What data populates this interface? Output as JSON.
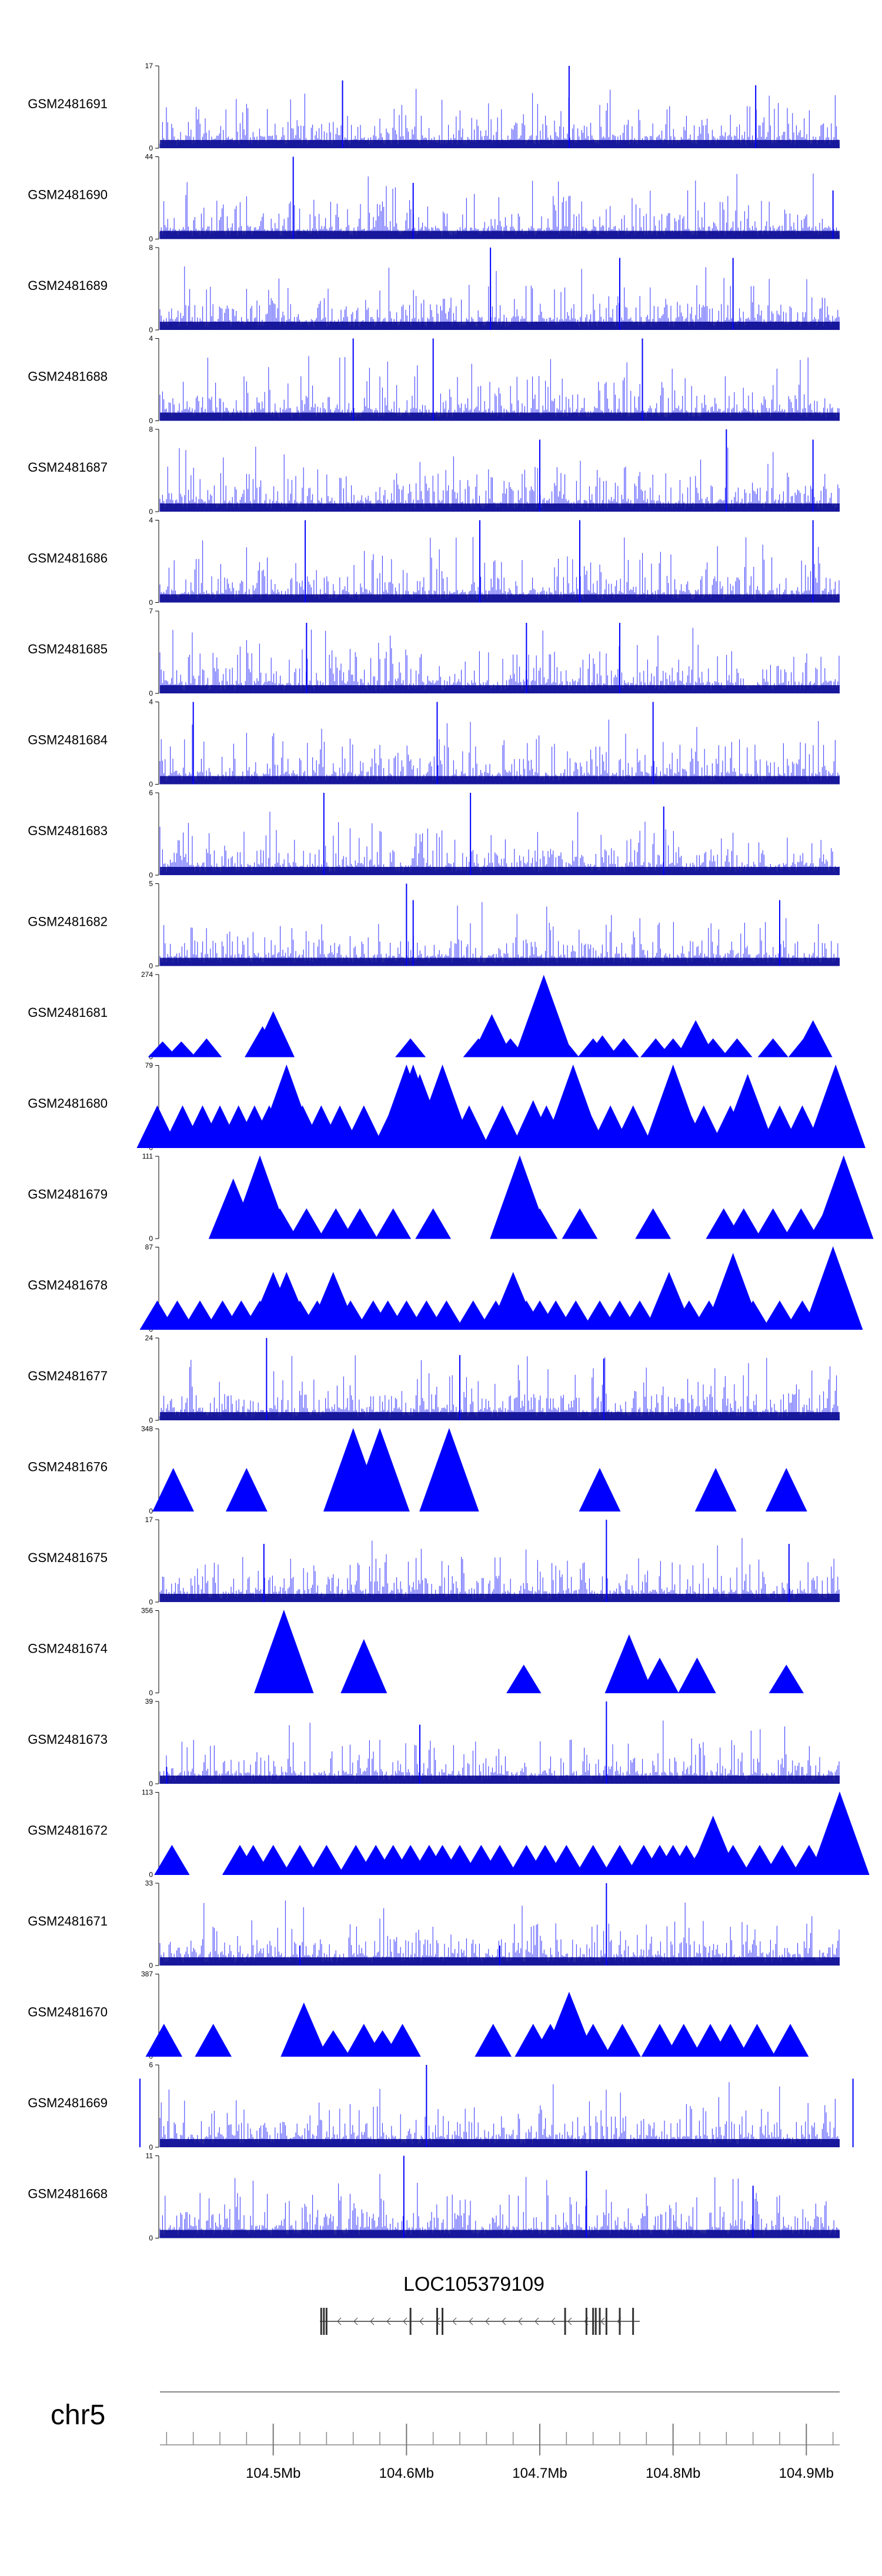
{
  "chart_data": {
    "type": "area",
    "color": "#0000ff",
    "edge_color": "#00008b",
    "tracks": [
      {
        "name": "GSM2481691",
        "ymax": "17",
        "ymin": "0",
        "style": "dense",
        "peaks": [
          [
            104.552,
            14
          ],
          [
            104.722,
            17
          ],
          [
            104.862,
            13
          ]
        ]
      },
      {
        "name": "GSM2481690",
        "ymax": "44",
        "ymin": "0",
        "style": "dense",
        "peaks": [
          [
            104.515,
            44
          ],
          [
            104.605,
            30
          ],
          [
            104.92,
            26
          ]
        ]
      },
      {
        "name": "GSM2481689",
        "ymax": "8",
        "ymin": "0",
        "style": "dense",
        "peaks": [
          [
            104.663,
            8
          ],
          [
            104.845,
            7
          ],
          [
            104.76,
            7
          ]
        ]
      },
      {
        "name": "GSM2481688",
        "ymax": "4",
        "ymin": "0",
        "style": "dense",
        "peaks": [
          [
            104.56,
            4
          ],
          [
            104.62,
            4
          ],
          [
            104.777,
            4
          ]
        ]
      },
      {
        "name": "GSM2481687",
        "ymax": "8",
        "ymin": "0",
        "style": "dense",
        "peaks": [
          [
            104.84,
            8
          ],
          [
            104.7,
            7
          ],
          [
            104.905,
            7
          ]
        ]
      },
      {
        "name": "GSM2481686",
        "ymax": "4",
        "ymin": "0",
        "style": "dense",
        "peaks": [
          [
            104.524,
            4
          ],
          [
            104.655,
            4
          ],
          [
            104.73,
            4
          ],
          [
            104.905,
            4
          ]
        ]
      },
      {
        "name": "GSM2481685",
        "ymax": "7",
        "ymin": "0",
        "style": "dense",
        "peaks": [
          [
            104.525,
            6
          ],
          [
            104.69,
            6
          ],
          [
            104.76,
            6
          ]
        ]
      },
      {
        "name": "GSM2481684",
        "ymax": "4",
        "ymin": "0",
        "style": "dense",
        "peaks": [
          [
            104.44,
            4
          ],
          [
            104.623,
            4
          ],
          [
            104.785,
            4
          ]
        ]
      },
      {
        "name": "GSM2481683",
        "ymax": "6",
        "ymin": "0",
        "style": "dense",
        "peaks": [
          [
            104.538,
            6
          ],
          [
            104.648,
            6
          ],
          [
            104.793,
            5
          ]
        ]
      },
      {
        "name": "GSM2481682",
        "ymax": "5",
        "ymin": "0",
        "style": "dense",
        "peaks": [
          [
            104.6,
            5
          ],
          [
            104.605,
            4
          ],
          [
            104.88,
            4
          ]
        ]
      },
      {
        "name": "GSM2481681",
        "ymax": "274",
        "ymin": "0",
        "style": "peaks",
        "peaks": [
          [
            104.417,
            50
          ],
          [
            104.431,
            50
          ],
          [
            104.45,
            60
          ],
          [
            104.49,
            50
          ],
          [
            104.492,
            100
          ],
          [
            104.5,
            150
          ],
          [
            104.603,
            60
          ],
          [
            104.654,
            60
          ],
          [
            104.664,
            140
          ],
          [
            104.678,
            60
          ],
          [
            104.695,
            70
          ],
          [
            104.703,
            270
          ],
          [
            104.718,
            60
          ],
          [
            104.74,
            60
          ],
          [
            104.747,
            70
          ],
          [
            104.763,
            60
          ],
          [
            104.787,
            60
          ],
          [
            104.8,
            60
          ],
          [
            104.81,
            40
          ],
          [
            104.817,
            120
          ],
          [
            104.83,
            60
          ],
          [
            104.848,
            60
          ],
          [
            104.875,
            60
          ],
          [
            104.898,
            60
          ],
          [
            104.905,
            120
          ]
        ]
      },
      {
        "name": "GSM2481680",
        "ymax": "79",
        "ymin": "0",
        "style": "peaks",
        "peaks": [
          [
            104.413,
            40
          ],
          [
            104.432,
            40
          ],
          [
            104.447,
            40
          ],
          [
            104.46,
            40
          ],
          [
            104.474,
            40
          ],
          [
            104.486,
            40
          ],
          [
            104.497,
            40
          ],
          [
            104.505,
            40
          ],
          [
            104.51,
            79
          ],
          [
            104.522,
            40
          ],
          [
            104.536,
            40
          ],
          [
            104.55,
            40
          ],
          [
            104.568,
            40
          ],
          [
            104.59,
            40
          ],
          [
            104.6,
            79
          ],
          [
            104.605,
            79
          ],
          [
            104.61,
            70
          ],
          [
            104.616,
            40
          ],
          [
            104.627,
            79
          ],
          [
            104.647,
            40
          ],
          [
            104.672,
            40
          ],
          [
            104.695,
            45
          ],
          [
            104.705,
            40
          ],
          [
            104.717,
            40
          ],
          [
            104.725,
            79
          ],
          [
            104.735,
            40
          ],
          [
            104.753,
            40
          ],
          [
            104.77,
            40
          ],
          [
            104.792,
            40
          ],
          [
            104.8,
            79
          ],
          [
            104.81,
            40
          ],
          [
            104.823,
            40
          ],
          [
            104.843,
            40
          ],
          [
            104.856,
            70
          ],
          [
            104.862,
            40
          ],
          [
            104.88,
            40
          ],
          [
            104.897,
            40
          ],
          [
            104.915,
            40
          ],
          [
            104.922,
            79
          ]
        ]
      },
      {
        "name": "GSM2481679",
        "ymax": "111",
        "ymin": "0",
        "style": "peaks",
        "peaks": [
          [
            104.465,
            40
          ],
          [
            104.47,
            80
          ],
          [
            104.49,
            111
          ],
          [
            104.505,
            40
          ],
          [
            104.525,
            40
          ],
          [
            104.547,
            40
          ],
          [
            104.565,
            40
          ],
          [
            104.59,
            40
          ],
          [
            104.62,
            40
          ],
          [
            104.685,
            111
          ],
          [
            104.692,
            40
          ],
          [
            104.7,
            40
          ],
          [
            104.73,
            40
          ],
          [
            104.785,
            40
          ],
          [
            104.838,
            40
          ],
          [
            104.853,
            40
          ],
          [
            104.875,
            40
          ],
          [
            104.896,
            40
          ],
          [
            104.915,
            40
          ],
          [
            104.928,
            111
          ]
        ]
      },
      {
        "name": "GSM2481678",
        "ymax": "87",
        "ymin": "0",
        "style": "peaks",
        "peaks": [
          [
            104.413,
            30
          ],
          [
            104.428,
            30
          ],
          [
            104.445,
            30
          ],
          [
            104.462,
            30
          ],
          [
            104.476,
            30
          ],
          [
            104.49,
            30
          ],
          [
            104.5,
            60
          ],
          [
            104.51,
            60
          ],
          [
            104.52,
            30
          ],
          [
            104.533,
            30
          ],
          [
            104.545,
            60
          ],
          [
            104.558,
            30
          ],
          [
            104.575,
            30
          ],
          [
            104.586,
            30
          ],
          [
            104.6,
            30
          ],
          [
            104.615,
            30
          ],
          [
            104.63,
            30
          ],
          [
            104.65,
            30
          ],
          [
            104.667,
            30
          ],
          [
            104.68,
            60
          ],
          [
            104.69,
            30
          ],
          [
            104.7,
            30
          ],
          [
            104.712,
            30
          ],
          [
            104.727,
            30
          ],
          [
            104.745,
            30
          ],
          [
            104.76,
            30
          ],
          [
            104.775,
            30
          ],
          [
            104.797,
            60
          ],
          [
            104.812,
            30
          ],
          [
            104.827,
            30
          ],
          [
            104.845,
            80
          ],
          [
            104.86,
            30
          ],
          [
            104.88,
            30
          ],
          [
            104.897,
            30
          ],
          [
            104.92,
            87
          ]
        ]
      },
      {
        "name": "GSM2481677",
        "ymax": "24",
        "ymin": "0",
        "style": "dense",
        "peaks": [
          [
            104.495,
            24
          ],
          [
            104.64,
            19
          ],
          [
            104.748,
            18
          ]
        ]
      },
      {
        "name": "GSM2481676",
        "ymax": "348",
        "ymin": "0",
        "style": "peaks",
        "peaks": [
          [
            104.425,
            180
          ],
          [
            104.48,
            180
          ],
          [
            104.56,
            348
          ],
          [
            104.58,
            348
          ],
          [
            104.632,
            348
          ],
          [
            104.745,
            180
          ],
          [
            104.832,
            180
          ],
          [
            104.885,
            180
          ]
        ]
      },
      {
        "name": "GSM2481675",
        "ymax": "17",
        "ymin": "0",
        "style": "dense",
        "peaks": [
          [
            104.75,
            17
          ],
          [
            104.493,
            12
          ],
          [
            104.887,
            12
          ]
        ]
      },
      {
        "name": "GSM2481674",
        "ymax": "356",
        "ymin": "0",
        "style": "peaks",
        "peaks": [
          [
            104.508,
            356
          ],
          [
            104.568,
            230
          ],
          [
            104.688,
            120
          ],
          [
            104.767,
            250
          ],
          [
            104.79,
            150
          ],
          [
            104.818,
            150
          ],
          [
            104.885,
            120
          ]
        ]
      },
      {
        "name": "GSM2481673",
        "ymax": "39",
        "ymin": "0",
        "style": "dense",
        "peaks": [
          [
            104.75,
            39
          ],
          [
            104.61,
            28
          ],
          [
            104.42,
            8
          ]
        ]
      },
      {
        "name": "GSM2481672",
        "ymax": "113",
        "ymin": "0",
        "style": "peaks",
        "peaks": [
          [
            104.424,
            40
          ],
          [
            104.475,
            40
          ],
          [
            104.485,
            40
          ],
          [
            104.5,
            40
          ],
          [
            104.52,
            40
          ],
          [
            104.54,
            40
          ],
          [
            104.562,
            40
          ],
          [
            104.577,
            40
          ],
          [
            104.59,
            40
          ],
          [
            104.603,
            40
          ],
          [
            104.617,
            40
          ],
          [
            104.627,
            40
          ],
          [
            104.64,
            40
          ],
          [
            104.656,
            40
          ],
          [
            104.67,
            40
          ],
          [
            104.69,
            40
          ],
          [
            104.704,
            40
          ],
          [
            104.72,
            40
          ],
          [
            104.74,
            40
          ],
          [
            104.76,
            40
          ],
          [
            104.778,
            40
          ],
          [
            104.79,
            40
          ],
          [
            104.8,
            40
          ],
          [
            104.81,
            40
          ],
          [
            104.822,
            40
          ],
          [
            104.83,
            80
          ],
          [
            104.845,
            40
          ],
          [
            104.865,
            40
          ],
          [
            104.882,
            40
          ],
          [
            104.902,
            40
          ],
          [
            104.925,
            113
          ]
        ]
      },
      {
        "name": "GSM2481671",
        "ymax": "33",
        "ymin": "0",
        "style": "dense",
        "peaks": [
          [
            104.75,
            33
          ],
          [
            104.67,
            8
          ],
          [
            104.52,
            8
          ]
        ]
      },
      {
        "name": "GSM2481670",
        "ymax": "387",
        "ymin": "0",
        "style": "peaks",
        "peaks": [
          [
            104.418,
            150
          ],
          [
            104.455,
            150
          ],
          [
            104.523,
            250
          ],
          [
            104.545,
            120
          ],
          [
            104.568,
            150
          ],
          [
            104.582,
            120
          ],
          [
            104.597,
            150
          ],
          [
            104.665,
            150
          ],
          [
            104.695,
            150
          ],
          [
            104.708,
            150
          ],
          [
            104.722,
            300
          ],
          [
            104.74,
            150
          ],
          [
            104.762,
            150
          ],
          [
            104.79,
            150
          ],
          [
            104.808,
            150
          ],
          [
            104.828,
            150
          ],
          [
            104.843,
            150
          ],
          [
            104.863,
            150
          ],
          [
            104.888,
            150
          ]
        ]
      },
      {
        "name": "GSM2481669",
        "ymax": "6",
        "ymin": "0",
        "style": "dense",
        "peaks": [
          [
            104.615,
            6
          ],
          [
            104.4,
            5
          ],
          [
            104.935,
            5
          ]
        ]
      },
      {
        "name": "GSM2481668",
        "ymax": "11",
        "ymin": "0",
        "style": "dense",
        "peaks": [
          [
            104.598,
            11
          ],
          [
            104.735,
            9
          ],
          [
            104.86,
            7
          ]
        ]
      }
    ],
    "gene": {
      "name": "LOC105379109",
      "strand": "-",
      "start": 104.535,
      "end": 104.775,
      "exons": [
        104.536,
        104.538,
        104.54,
        104.603,
        104.623,
        104.627,
        104.719,
        104.735,
        104.74,
        104.742,
        104.745,
        104.75,
        104.76,
        104.77
      ]
    },
    "chromosome": "chr5",
    "xlim": [
      104.415,
      104.925
    ],
    "x_ticks": [
      "104.5Mb",
      "104.6Mb",
      "104.7Mb",
      "104.8Mb",
      "104.9Mb"
    ],
    "x_tick_values": [
      104.5,
      104.6,
      104.7,
      104.8,
      104.9
    ],
    "x_minor_ticks": [
      104.42,
      104.44,
      104.46,
      104.48,
      104.52,
      104.54,
      104.56,
      104.58,
      104.62,
      104.64,
      104.66,
      104.68,
      104.72,
      104.74,
      104.76,
      104.78,
      104.82,
      104.84,
      104.86,
      104.88,
      104.92
    ]
  }
}
